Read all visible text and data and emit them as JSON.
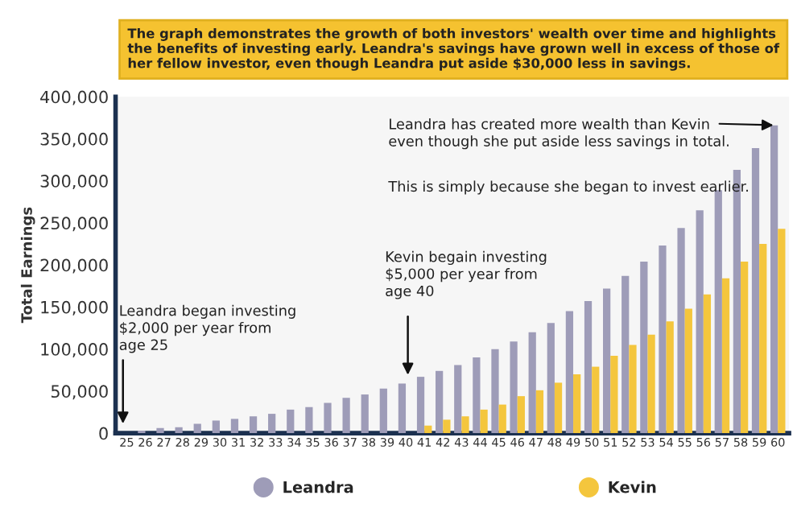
{
  "chart_data": {
    "type": "bar",
    "title": "The graph demonstrates the growth of both investors' wealth over time and highlights the benefits of investing early. Leandra's savings have grown well in excess of those of her fellow investor, even though Leandra put aside $30,000 less in savings.",
    "ylabel": "Total Earnings",
    "categories": [
      "25",
      "26",
      "27",
      "28",
      "29",
      "30",
      "31",
      "32",
      "33",
      "34",
      "35",
      "36",
      "37",
      "38",
      "39",
      "40",
      "41",
      "42",
      "43",
      "44",
      "45",
      "46",
      "47",
      "48",
      "49",
      "50",
      "51",
      "52",
      "53",
      "54",
      "55",
      "56",
      "57",
      "58",
      "59",
      "60"
    ],
    "series": [
      {
        "name": "Leandra",
        "color": "#9e9cb8",
        "values": [
          null,
          3000,
          6000,
          7000,
          11000,
          15000,
          17000,
          20000,
          23000,
          28000,
          31000,
          36000,
          42000,
          46000,
          53000,
          59000,
          67000,
          74000,
          81000,
          90000,
          100000,
          109000,
          120000,
          131000,
          145000,
          157000,
          172000,
          187000,
          204000,
          223000,
          244000,
          265000,
          289000,
          313000,
          339000,
          366000
        ]
      },
      {
        "name": "Kevin",
        "color": "#f4c63d",
        "values": [
          null,
          null,
          null,
          null,
          null,
          null,
          null,
          null,
          null,
          null,
          null,
          null,
          null,
          null,
          null,
          null,
          9000,
          16000,
          20000,
          28000,
          34000,
          44000,
          51000,
          60000,
          70000,
          79000,
          92000,
          105000,
          117000,
          133000,
          148000,
          165000,
          184000,
          204000,
          225000,
          243000
        ]
      }
    ],
    "ylim": [
      0,
      400000
    ],
    "yticks": [
      {
        "value": 0,
        "label": "0"
      },
      {
        "value": 50000,
        "label": "50,000"
      },
      {
        "value": 100000,
        "label": "100,000"
      },
      {
        "value": 150000,
        "label": "150,000"
      },
      {
        "value": 200000,
        "label": "200,000"
      },
      {
        "value": 250000,
        "label": "250,000"
      },
      {
        "value": 300000,
        "label": "300,000"
      },
      {
        "value": 350000,
        "label": "350,000"
      },
      {
        "value": 400000,
        "label": "400,000"
      }
    ],
    "annotations": [
      "Leandra began investing\n$2,000 per year from\nage 25",
      "Kevin begain investing\n$5,000 per year from\nage 40",
      {
        "text": "Leandra has created more wealth than Kevin\neven though she put aside less savings in total.",
        "x": "60",
        "y": 366000
      },
      "This is simply because she began to invest earlier."
    ],
    "grid": false,
    "legend": "bottom"
  }
}
